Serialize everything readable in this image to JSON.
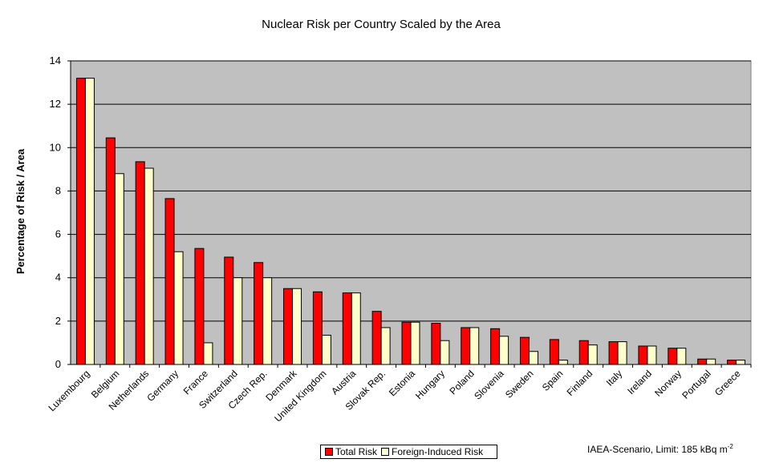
{
  "chart_data": {
    "type": "bar",
    "title": "Nuclear Risk per Country Scaled by the Area",
    "ylabel": "Percentage of Risk / Area",
    "xlabel": "",
    "ylim": [
      0,
      14
    ],
    "yticks": [
      0,
      2,
      4,
      6,
      8,
      10,
      12,
      14
    ],
    "grid": true,
    "legend_position": "bottom-center",
    "plot_background": "#c0c0c0",
    "categories": [
      "Luxembourg",
      "Belgium",
      "Netherlands",
      "Germany",
      "France",
      "Switzerland",
      "Czech Rep.",
      "Denmark",
      "United Kingdom",
      "Austria",
      "Slovak Rep.",
      "Estonia",
      "Hungary",
      "Poland",
      "Slovenia",
      "Sweden",
      "Spain",
      "Finland",
      "Italy",
      "Ireland",
      "Norway",
      "Portugal",
      "Greece"
    ],
    "series": [
      {
        "name": "Total Risk",
        "color": "#ff0000",
        "values": [
          13.2,
          10.45,
          9.35,
          7.65,
          5.35,
          4.95,
          4.7,
          3.5,
          3.35,
          3.3,
          2.45,
          1.95,
          1.9,
          1.7,
          1.65,
          1.25,
          1.15,
          1.1,
          1.05,
          0.85,
          0.75,
          0.25,
          0.2
        ]
      },
      {
        "name": "Foreign-Induced Risk",
        "color": "#ffffcc",
        "values": [
          13.2,
          8.8,
          9.05,
          5.2,
          1.0,
          4.0,
          4.0,
          3.5,
          1.35,
          3.3,
          1.7,
          1.95,
          1.1,
          1.7,
          1.3,
          0.6,
          0.2,
          0.9,
          1.05,
          0.85,
          0.75,
          0.25,
          0.2
        ]
      }
    ],
    "annotation": "IAEA-Scenario, Limit: 185 kBq m",
    "annotation_sup": "-2"
  }
}
